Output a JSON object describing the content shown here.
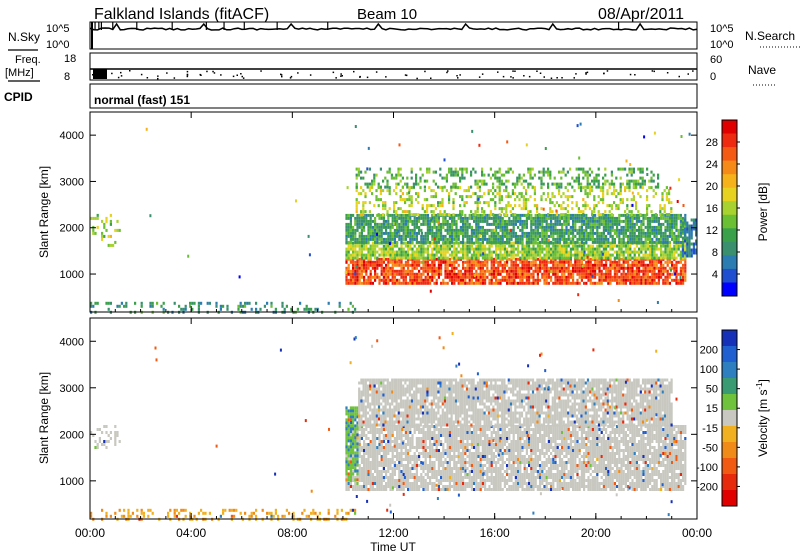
{
  "header": {
    "station": "Falkland Islands (fitACF)",
    "beam": "Beam 10",
    "date": "08/Apr/2011"
  },
  "strips": {
    "nsky_label": "N.Sky",
    "nsky_ticks": [
      "10^5",
      "10^0"
    ],
    "nsearch_label": "N.Search",
    "nsearch_ticks": [
      "10^5",
      "10^0"
    ],
    "freq_label": "Freq.",
    "freq_unit": "[MHz]",
    "freq_ticks": [
      "18",
      "8"
    ],
    "nave_label": "Nave",
    "nave_ticks": [
      "60",
      "0"
    ],
    "cpid_label": "CPID",
    "cpid_value": "normal (fast) 151"
  },
  "axes": {
    "ylabel": "Slant Range [km]",
    "xlabel": "Time UT",
    "x_ticks": [
      "00:00",
      "04:00",
      "08:00",
      "12:00",
      "16:00",
      "20:00",
      "00:00"
    ],
    "y_ticks": [
      "4000",
      "3000",
      "2000",
      "1000"
    ]
  },
  "colors": {
    "power": [
      "#0000ff",
      "#1f4fd0",
      "#2b7cb0",
      "#3a8f6e",
      "#3aa14a",
      "#6abf33",
      "#a7d230",
      "#e6d21f",
      "#f5b21a",
      "#f58a18",
      "#f55a14",
      "#ee2a10",
      "#e00000"
    ],
    "velocity": [
      "#1630b8",
      "#1f5fd0",
      "#2e7fbf",
      "#3a9a72",
      "#6fc23c",
      "#c8c8c0",
      "#f0b020",
      "#f08a18",
      "#f05a12",
      "#e82a0c",
      "#e00000"
    ],
    "ground_scatter": "#bdbdb4"
  },
  "chart_data": [
    {
      "type": "heatmap",
      "name_printed": "Power [dB]",
      "colorbar_label": "Power [dB]",
      "colorbar_ticks": [
        "28",
        "24",
        "20",
        "16",
        "12",
        "8",
        "4"
      ],
      "xlabel": "",
      "ylabel": "Slant Range [km]",
      "x_ticks": [
        "00:00",
        "04:00",
        "08:00",
        "12:00",
        "16:00",
        "20:00",
        "00:00"
      ],
      "xlim_hours": [
        0,
        24
      ],
      "ylim": [
        180,
        4500
      ],
      "regions": [
        {
          "t0": 10.1,
          "t1": 23.5,
          "r0": 800,
          "r1": 1350,
          "level": 26
        },
        {
          "t0": 10.1,
          "t1": 23.5,
          "r0": 1350,
          "r1": 1700,
          "level": 14
        },
        {
          "t0": 10.1,
          "t1": 23.5,
          "r0": 1700,
          "r1": 2300,
          "level": 9
        },
        {
          "t0": 10.5,
          "t1": 23.0,
          "r0": 2300,
          "r1": 2900,
          "level": 15
        },
        {
          "t0": 10.5,
          "t1": 22.5,
          "r0": 2900,
          "r1": 3300,
          "level": 11
        },
        {
          "t0": 0.0,
          "t1": 1.2,
          "r0": 1600,
          "r1": 2300,
          "level": 15
        },
        {
          "t0": 0.0,
          "t1": 10.5,
          "r0": 200,
          "r1": 400,
          "level": 8
        },
        {
          "t0": 23.4,
          "t1": 24.0,
          "r0": 1400,
          "r1": 2200,
          "level": 6
        }
      ]
    },
    {
      "type": "heatmap",
      "name_printed": "Velocity [m s^-1]",
      "colorbar_label": "Velocity [m s",
      "colorbar_unit_sup": "-1",
      "colorbar_ticks": [
        "200",
        "100",
        "50",
        "15",
        "-15",
        "-50",
        "-100",
        "-200"
      ],
      "xlabel": "Time UT",
      "ylabel": "Slant Range [km]",
      "x_ticks": [
        "00:00",
        "04:00",
        "08:00",
        "12:00",
        "16:00",
        "20:00",
        "00:00"
      ],
      "xlim_hours": [
        0,
        24
      ],
      "ylim": [
        180,
        4500
      ],
      "regions": [
        {
          "t0": 10.1,
          "t1": 23.5,
          "r0": 800,
          "r1": 2200,
          "value": 0
        },
        {
          "t0": 10.1,
          "t1": 10.6,
          "r0": 1000,
          "r1": 2600,
          "value": 30
        },
        {
          "t0": 10.6,
          "t1": 23.0,
          "r0": 2200,
          "r1": 3200,
          "value": 0
        },
        {
          "t0": 0.0,
          "t1": 1.2,
          "r0": 1700,
          "r1": 2200,
          "value": 0
        },
        {
          "t0": 0.0,
          "t1": 10.5,
          "r0": 200,
          "r1": 400,
          "value": -30
        }
      ]
    }
  ]
}
